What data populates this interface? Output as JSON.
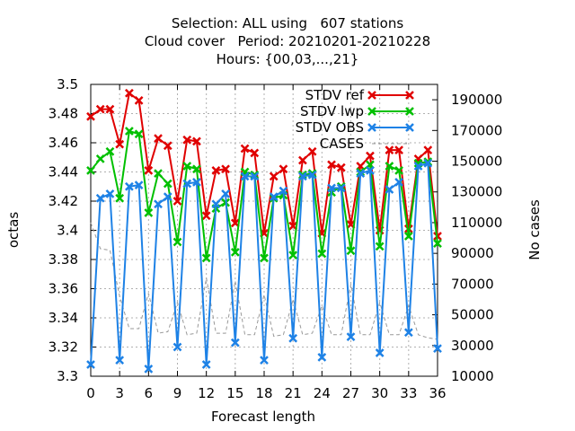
{
  "chart_data": {
    "type": "line",
    "title_lines": [
      "Selection: ALL using   607 stations",
      "Cloud cover   Period: 20210201-20210228",
      "Hours: {00,03,...,21}"
    ],
    "xlabel": "Forecast length",
    "ylabel": "octas",
    "y2label": "No cases",
    "xlim": [
      0,
      36
    ],
    "ylim": [
      3.3,
      3.5
    ],
    "y2lim": [
      10000,
      200000
    ],
    "x_ticks": [
      0,
      3,
      6,
      9,
      12,
      15,
      18,
      21,
      24,
      27,
      30,
      33,
      36
    ],
    "y_ticks": [
      "3.3",
      "3.32",
      "3.34",
      "3.36",
      "3.38",
      "3.4",
      "3.42",
      "3.44",
      "3.46",
      "3.48",
      "3.5"
    ],
    "y2_ticks": [
      "10000",
      "30000",
      "50000",
      "70000",
      "90000",
      "110000",
      "130000",
      "150000",
      "170000",
      "190000"
    ],
    "grid": true,
    "legend_position": "top-right",
    "x": [
      0,
      1,
      2,
      3,
      4,
      5,
      6,
      7,
      8,
      9,
      10,
      11,
      12,
      13,
      14,
      15,
      16,
      17,
      18,
      19,
      20,
      21,
      22,
      23,
      24,
      25,
      26,
      27,
      28,
      29,
      30,
      31,
      32,
      33,
      34,
      35,
      36
    ],
    "series": [
      {
        "name": "STDV ref",
        "color": "#e00000",
        "marker": "x",
        "values": [
          3.478,
          3.483,
          3.483,
          3.459,
          3.494,
          3.489,
          3.441,
          3.463,
          3.458,
          3.42,
          3.462,
          3.461,
          3.41,
          3.441,
          3.442,
          3.405,
          3.456,
          3.453,
          3.398,
          3.437,
          3.442,
          3.403,
          3.448,
          3.454,
          3.398,
          3.445,
          3.443,
          3.404,
          3.444,
          3.451,
          3.4,
          3.455,
          3.455,
          3.401,
          3.449,
          3.455,
          3.396
        ]
      },
      {
        "name": "STDV lwp",
        "color": "#00c000",
        "marker": "x",
        "values": [
          3.441,
          3.449,
          3.454,
          3.422,
          3.468,
          3.466,
          3.412,
          3.439,
          3.432,
          3.392,
          3.444,
          3.442,
          3.381,
          3.415,
          3.419,
          3.385,
          3.44,
          3.438,
          3.381,
          3.422,
          3.424,
          3.383,
          3.438,
          3.439,
          3.384,
          3.426,
          3.43,
          3.386,
          3.44,
          3.445,
          3.389,
          3.444,
          3.441,
          3.396,
          3.446,
          3.447,
          3.391
        ]
      },
      {
        "name": "STDV OBS",
        "color": "#1e82e6",
        "marker": "x",
        "values": [
          3.308,
          3.422,
          3.425,
          3.311,
          3.43,
          3.431,
          3.305,
          3.418,
          3.423,
          3.32,
          3.432,
          3.433,
          3.308,
          3.418,
          3.425,
          3.323,
          3.437,
          3.437,
          3.311,
          3.423,
          3.427,
          3.326,
          3.437,
          3.438,
          3.313,
          3.429,
          3.429,
          3.327,
          3.439,
          3.441,
          3.316,
          3.428,
          3.433,
          3.33,
          3.444,
          3.446,
          3.319
        ]
      },
      {
        "name": "CASES",
        "color": "#999999",
        "dash": true,
        "axis": "y2",
        "values": [
          110000,
          93000,
          92000,
          62000,
          41000,
          41000,
          64000,
          38000,
          39000,
          58000,
          37000,
          38000,
          74000,
          38000,
          38000,
          72000,
          37000,
          37000,
          63000,
          36000,
          37000,
          60000,
          37000,
          38000,
          56000,
          37000,
          37000,
          70000,
          37000,
          37000,
          58000,
          37000,
          37000,
          56000,
          37000,
          35000,
          34000
        ]
      }
    ]
  }
}
